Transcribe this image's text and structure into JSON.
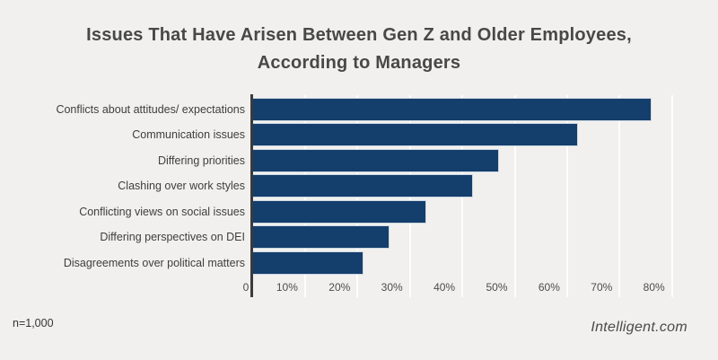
{
  "header": {
    "title_line1": "Issues That Have Arisen Between Gen Z and Older Employees,",
    "title_line2": "According to Managers"
  },
  "chart_data": {
    "type": "bar",
    "orientation": "horizontal",
    "title": "Issues That Have Arisen Between Gen Z and Older Employees, According to Managers",
    "categories": [
      "Conflicts about attitudes/ expectations",
      "Communication issues",
      "Differing priorities",
      "Clashing over work styles",
      "Conflicting views on social issues",
      "Differing perspectives on DEI",
      "Disagreements over political matters"
    ],
    "values": [
      76,
      62,
      47,
      42,
      33,
      26,
      21
    ],
    "unit": "%",
    "xlabel": "",
    "ylabel": "",
    "xlim": [
      0,
      80
    ],
    "x_ticks": [
      "0",
      "10%",
      "20%",
      "30%",
      "40%",
      "50%",
      "60%",
      "70%",
      "80%"
    ],
    "grid": true,
    "legend": "none",
    "bar_color": "#143e6c",
    "bar_border_color": "#ccd8e4",
    "background_color": "#f1f0ee",
    "axis_color": "#3b3b3b"
  },
  "footer": {
    "sample_size": "n=1,000",
    "brand": "Intelligent.com"
  }
}
